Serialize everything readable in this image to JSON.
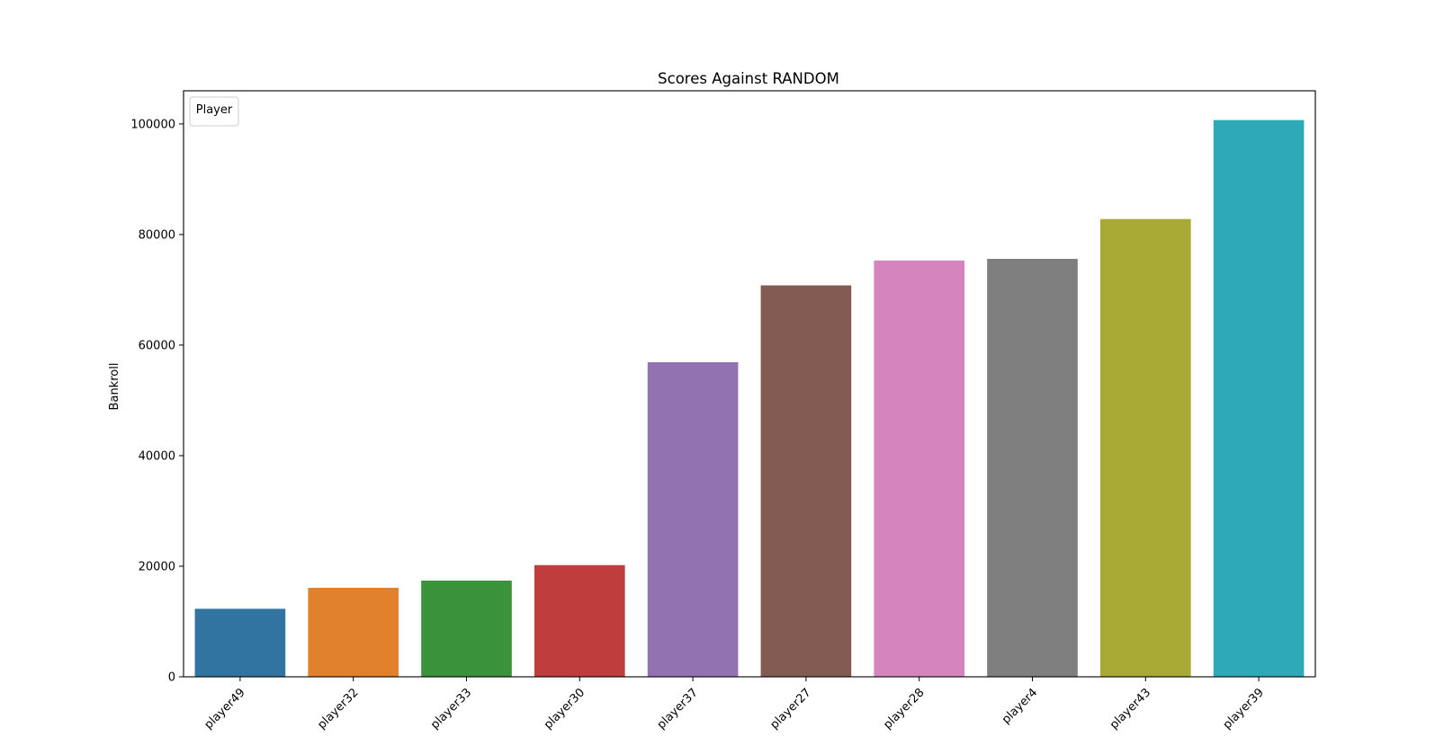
{
  "chart_data": {
    "type": "bar",
    "title": "Scores Against RANDOM",
    "xlabel": "",
    "ylabel": "Bankroll",
    "categories": [
      "player49",
      "player32",
      "player33",
      "player30",
      "player37",
      "player27",
      "player28",
      "player4",
      "player43",
      "player39"
    ],
    "values": [
      12300,
      16100,
      17400,
      20200,
      56900,
      70800,
      75300,
      75600,
      82800,
      100700
    ],
    "colors": [
      "#3274a1",
      "#e1812c",
      "#3a923a",
      "#c03d3e",
      "#9372b2",
      "#845b53",
      "#d684bd",
      "#7f7f7f",
      "#a9aa35",
      "#2ea9b8"
    ],
    "ylim": [
      0,
      106000
    ],
    "yticks": [
      0,
      20000,
      40000,
      60000,
      80000,
      100000
    ],
    "ytick_labels": [
      "0",
      "20000",
      "40000",
      "60000",
      "80000",
      "100000"
    ],
    "grid": false,
    "legend": {
      "title": "Player",
      "placement": "top-left",
      "entries": []
    }
  }
}
